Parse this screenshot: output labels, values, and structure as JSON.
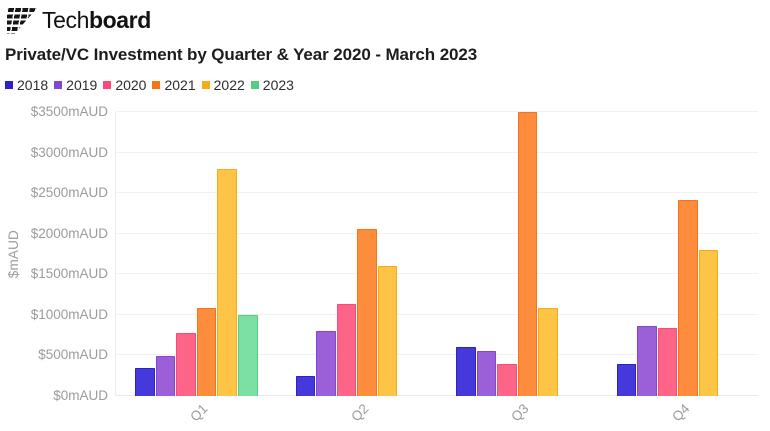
{
  "logo": {
    "name": "Techboard",
    "text_regular": "Tech",
    "text_bold": "board"
  },
  "chart_data": {
    "type": "bar",
    "title": "Private/VC Investment by Quarter & Year 2020 - March 2023",
    "ylabel": "$mAUD",
    "xlabel": "",
    "categories": [
      "Q1",
      "Q2",
      "Q3",
      "Q4"
    ],
    "series": [
      {
        "name": "2018",
        "values": [
          340,
          250,
          600,
          390
        ],
        "fill": "#4639db",
        "border": "#2d22c6"
      },
      {
        "name": "2019",
        "values": [
          490,
          800,
          560,
          860
        ],
        "fill": "#9b5fd8",
        "border": "#8546cf"
      },
      {
        "name": "2020",
        "values": [
          780,
          1140,
          390,
          840
        ],
        "fill": "#fe6487",
        "border": "#fa4879"
      },
      {
        "name": "2021",
        "values": [
          1080,
          2060,
          3500,
          2420
        ],
        "fill": "#fd8c3c",
        "border": "#f67417"
      },
      {
        "name": "2022",
        "values": [
          2800,
          1600,
          1080,
          1800
        ],
        "fill": "#fec445",
        "border": "#f6ac18"
      },
      {
        "name": "2023",
        "values": [
          1000,
          null,
          null,
          null
        ],
        "fill": "#7ce0a2",
        "border": "#50cf83"
      }
    ],
    "y_ticks": [
      {
        "value": 0,
        "label": "$0mAUD"
      },
      {
        "value": 500,
        "label": "$500mAUD"
      },
      {
        "value": 1000,
        "label": "$1000mAUD"
      },
      {
        "value": 1500,
        "label": "$1500mAUD"
      },
      {
        "value": 2000,
        "label": "$2000mAUD"
      },
      {
        "value": 2500,
        "label": "$2500mAUD"
      },
      {
        "value": 3000,
        "label": "$3000mAUD"
      },
      {
        "value": 3500,
        "label": "$3500mAUD"
      }
    ],
    "ylim": [
      0,
      3500
    ],
    "grid": true,
    "legend_position": "top-left",
    "x_tick_rotation": 45
  }
}
